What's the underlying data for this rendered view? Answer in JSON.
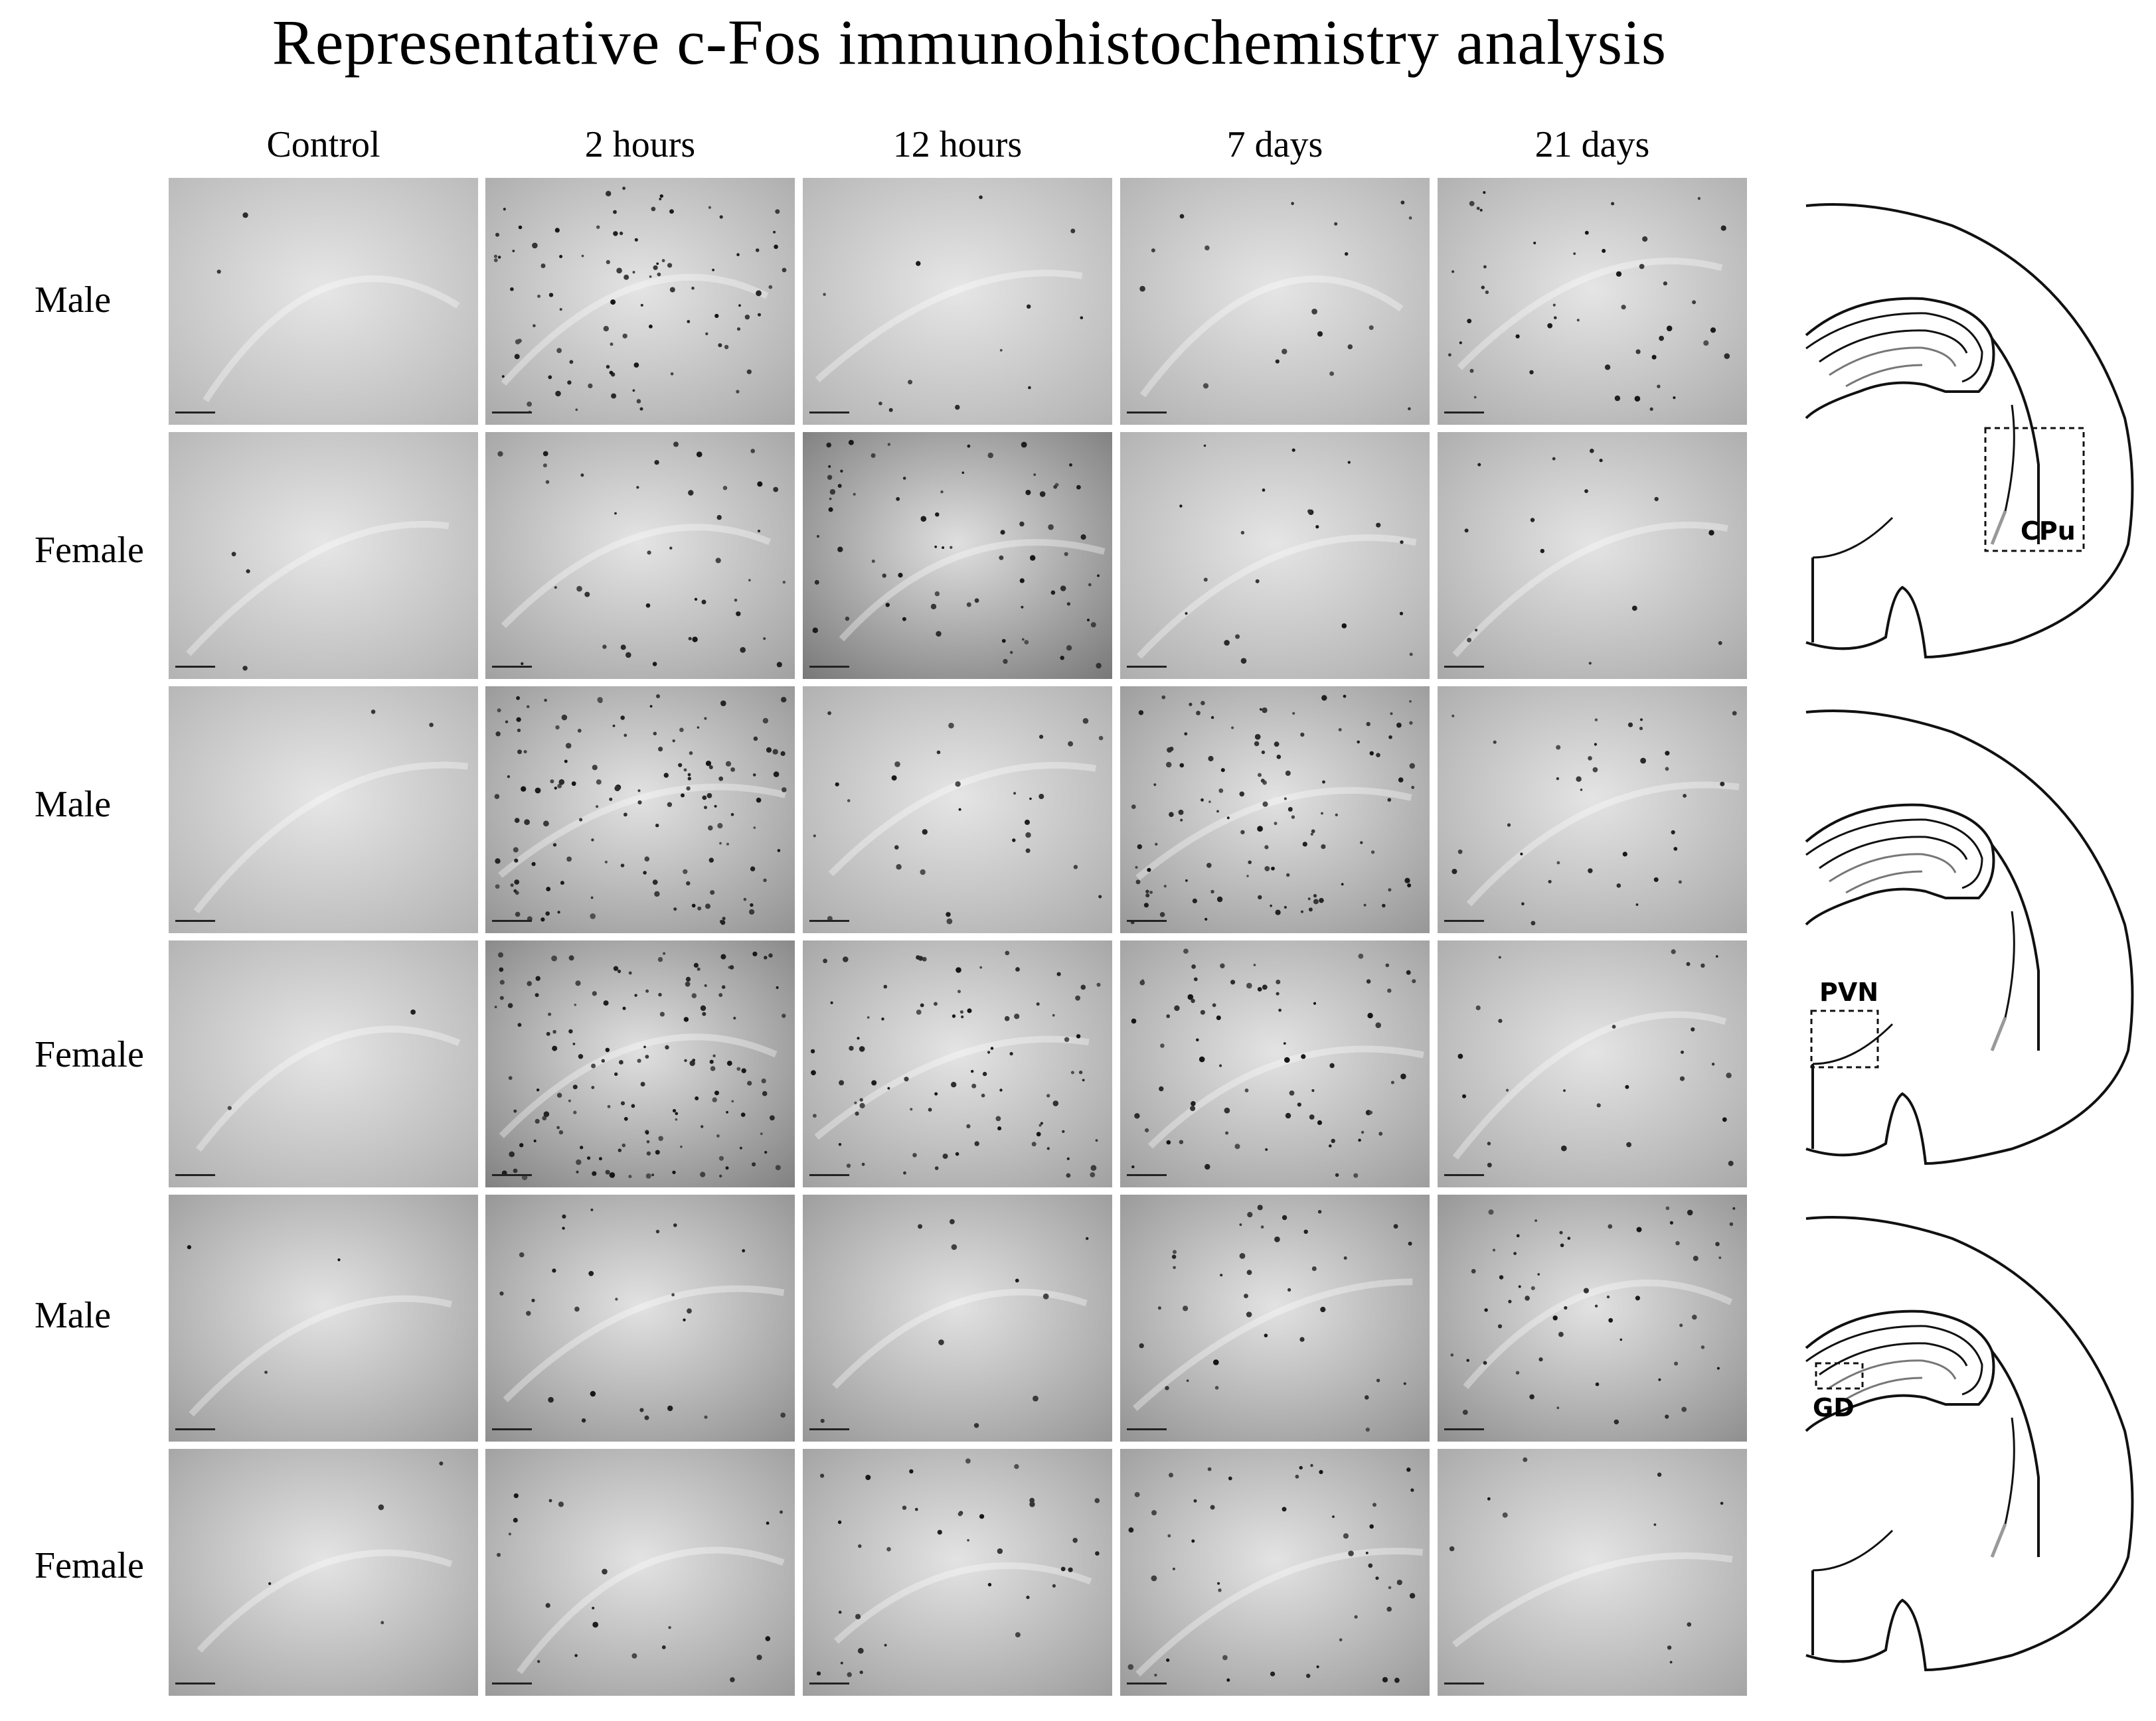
{
  "title": "Representative c-Fos immunohistochemistry analysis",
  "columns": [
    "Control",
    "2 hours",
    "12 hours",
    "7 days",
    "21 days"
  ],
  "rows": [
    "Male",
    "Female",
    "Male",
    "Female",
    "Male",
    "Female"
  ],
  "diagrams": [
    {
      "region_label": "CPu"
    },
    {
      "region_label": "PVN"
    },
    {
      "region_label": "GD"
    }
  ],
  "colors": {
    "background": "#ffffff",
    "tissue": "#dcdcdc",
    "stain": "#1a1a1a"
  }
}
